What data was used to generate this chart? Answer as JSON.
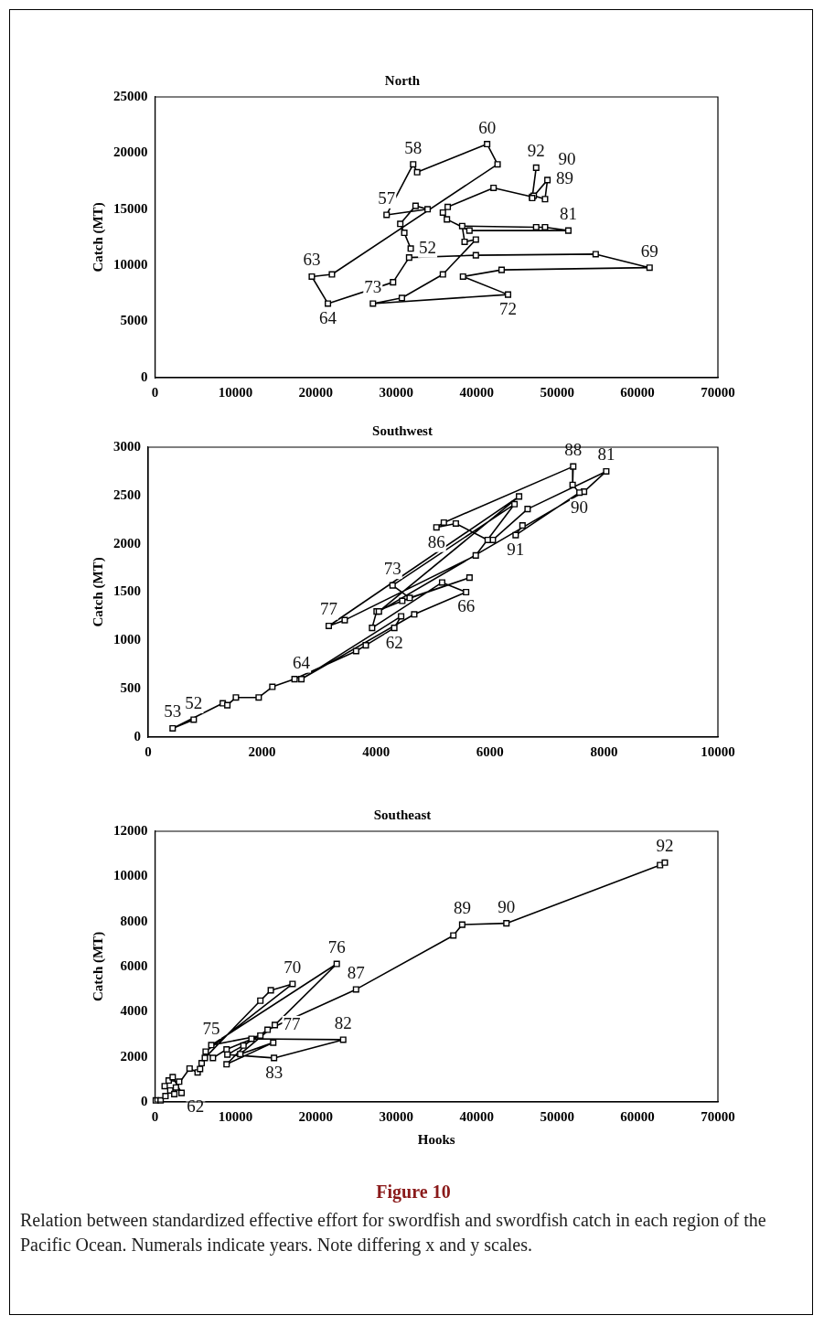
{
  "chart_data": [
    {
      "type": "line",
      "title": "North",
      "ylabel": "Catch (MT)",
      "color": "#000000",
      "marker": "square",
      "line_style": "solid",
      "grid": false,
      "legend": false,
      "xlim": [
        0,
        70000
      ],
      "xticks": [
        0,
        10000,
        20000,
        30000,
        40000,
        50000,
        60000,
        70000
      ],
      "ylim": [
        0,
        25000
      ],
      "yticks": [
        0,
        5000,
        10000,
        15000,
        20000,
        25000
      ],
      "x": [
        31800,
        31000,
        30500,
        32400,
        33900,
        28800,
        32100,
        32600,
        41300,
        42600,
        22000,
        19500,
        21500,
        29600,
        31600,
        39900,
        54800,
        61500,
        43100,
        38300,
        43900,
        27100,
        30700,
        35800,
        39900,
        38500,
        38200,
        47400,
        48500,
        51400,
        39100,
        36300,
        35800,
        36400,
        42100,
        46900,
        47100,
        48500,
        48800,
        46900,
        47400
      ],
      "values": [
        11500,
        12900,
        13700,
        15300,
        15000,
        14500,
        19000,
        18300,
        20800,
        19000,
        9200,
        9000,
        6600,
        8500,
        10700,
        10900,
        11000,
        9800,
        9600,
        9000,
        7400,
        6600,
        7100,
        9200,
        12300,
        12100,
        13500,
        13400,
        13400,
        13100,
        13100,
        14100,
        14700,
        15200,
        16900,
        16100,
        16200,
        15900,
        17600,
        16000,
        18700
      ],
      "annotations": [
        {
          "text": "52",
          "x": 31800,
          "y": 11500
        },
        {
          "text": "57",
          "x": 28800,
          "y": 14500
        },
        {
          "text": "58",
          "x": 32100,
          "y": 19000
        },
        {
          "text": "60",
          "x": 41300,
          "y": 20800
        },
        {
          "text": "63",
          "x": 19500,
          "y": 9000
        },
        {
          "text": "64",
          "x": 21500,
          "y": 6600
        },
        {
          "text": "69",
          "x": 61500,
          "y": 9800
        },
        {
          "text": "72",
          "x": 43900,
          "y": 7400
        },
        {
          "text": "73",
          "x": 27100,
          "y": 6600
        },
        {
          "text": "81",
          "x": 51400,
          "y": 13100
        },
        {
          "text": "89",
          "x": 48500,
          "y": 15900
        },
        {
          "text": "90",
          "x": 48800,
          "y": 17600
        },
        {
          "text": "92",
          "x": 47400,
          "y": 18700
        }
      ]
    },
    {
      "type": "line",
      "title": "Southwest",
      "ylabel": "Catch (MT)",
      "color": "#000000",
      "marker": "square",
      "line_style": "solid",
      "grid": false,
      "legend": false,
      "xlim": [
        0,
        10000
      ],
      "xticks": [
        0,
        2000,
        4000,
        6000,
        8000,
        10000
      ],
      "ylim": [
        0,
        3000
      ],
      "yticks": [
        0,
        500,
        1000,
        1500,
        2000,
        2500,
        3000
      ],
      "x": [
        800,
        430,
        1310,
        1390,
        1540,
        1940,
        2180,
        2570,
        3650,
        3820,
        4320,
        4440,
        2690,
        4670,
        5580,
        5160,
        3930,
        4010,
        4460,
        5640,
        4590,
        4290,
        6430,
        5750,
        3450,
        3170,
        6510,
        4050,
        7650,
        8040,
        6660,
        6050,
        5960,
        5400,
        5060,
        5190,
        7460,
        7450,
        7570,
        6450,
        6570
      ],
      "values": [
        180,
        90,
        350,
        330,
        410,
        410,
        520,
        600,
        890,
        950,
        1130,
        1250,
        600,
        1270,
        1500,
        1600,
        1130,
        1300,
        1410,
        1650,
        1440,
        1570,
        2410,
        1880,
        1210,
        1150,
        2490,
        1300,
        2540,
        2750,
        2360,
        2040,
        2040,
        2210,
        2170,
        2220,
        2800,
        2610,
        2530,
        2090,
        2190
      ],
      "annotations": [
        {
          "text": "52",
          "x": 800,
          "y": 180
        },
        {
          "text": "53",
          "x": 430,
          "y": 90
        },
        {
          "text": "62",
          "x": 4320,
          "y": 1130
        },
        {
          "text": "64",
          "x": 2690,
          "y": 600
        },
        {
          "text": "66",
          "x": 5580,
          "y": 1500
        },
        {
          "text": "73",
          "x": 4290,
          "y": 1570
        },
        {
          "text": "77",
          "x": 3170,
          "y": 1150
        },
        {
          "text": "81",
          "x": 8040,
          "y": 2750
        },
        {
          "text": "86",
          "x": 5060,
          "y": 2170
        },
        {
          "text": "88",
          "x": 7460,
          "y": 2800
        },
        {
          "text": "90",
          "x": 7570,
          "y": 2530
        },
        {
          "text": "91",
          "x": 6450,
          "y": 2090
        }
      ]
    },
    {
      "type": "line",
      "title": "Southeast",
      "xlabel": "Hooks",
      "ylabel": "Catch (MT)",
      "color": "#000000",
      "marker": "square",
      "line_style": "solid",
      "grid": false,
      "legend": false,
      "xlim": [
        0,
        70000
      ],
      "xticks": [
        0,
        10000,
        20000,
        30000,
        40000,
        50000,
        60000,
        70000
      ],
      "ylim": [
        0,
        12000
      ],
      "yticks": [
        0,
        2000,
        4000,
        6000,
        8000,
        10000,
        12000
      ],
      "x": [
        100,
        700,
        1300,
        1900,
        1200,
        2400,
        3000,
        1700,
        2200,
        3300,
        2600,
        4300,
        5300,
        5600,
        5800,
        6200,
        13100,
        14400,
        17100,
        6300,
        7200,
        8900,
        13100,
        7000,
        22600,
        14900,
        10600,
        14700,
        8900,
        12000,
        23400,
        14800,
        9000,
        11000,
        14000,
        25000,
        37100,
        38200,
        43700,
        62800,
        63400
      ],
      "values": [
        70,
        70,
        260,
        510,
        700,
        350,
        900,
        950,
        1100,
        400,
        640,
        1480,
        1310,
        1460,
        1720,
        1950,
        4490,
        4950,
        5230,
        2230,
        1950,
        2330,
        2940,
        2520,
        6120,
        3410,
        2120,
        2630,
        1670,
        2800,
        2760,
        1950,
        2100,
        2500,
        3200,
        4990,
        7380,
        7860,
        7920,
        10500,
        10610
      ],
      "annotations": [
        {
          "text": "62",
          "x": 2600,
          "y": 640
        },
        {
          "text": "70",
          "x": 17100,
          "y": 5230
        },
        {
          "text": "75",
          "x": 7000,
          "y": 2520
        },
        {
          "text": "76",
          "x": 22600,
          "y": 6120
        },
        {
          "text": "77",
          "x": 14900,
          "y": 3410
        },
        {
          "text": "82",
          "x": 23400,
          "y": 2760
        },
        {
          "text": "83",
          "x": 14800,
          "y": 1950
        },
        {
          "text": "87",
          "x": 25000,
          "y": 4990
        },
        {
          "text": "89",
          "x": 38200,
          "y": 7860
        },
        {
          "text": "90",
          "x": 43700,
          "y": 7920
        },
        {
          "text": "92",
          "x": 63400,
          "y": 10610
        },
        "Figure 10",
        "Relation between standardized effective effort for swordfish and swordfish catch in each region of the Pacific Ocean. Numerals indicate years. Note differing x and y scales."
      ]
    }
  ]
}
